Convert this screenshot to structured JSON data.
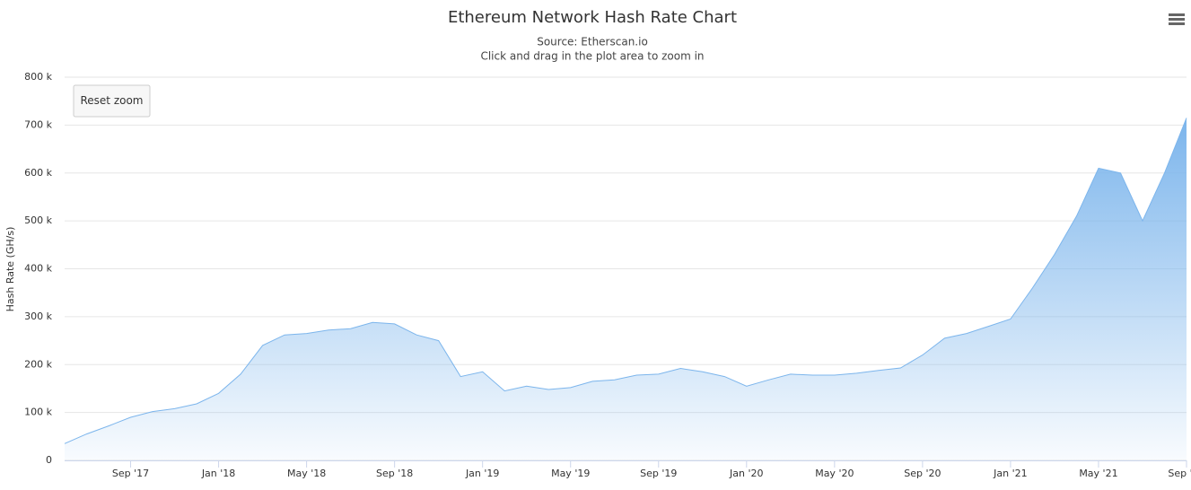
{
  "chart_data": {
    "type": "area",
    "title": "Ethereum Network Hash Rate Chart",
    "subtitle": [
      "Source: Etherscan.io",
      "Click and drag in the plot area to zoom in"
    ],
    "y_label": "Hash Rate (GH/s)",
    "reset_button": "Reset zoom",
    "color": "#7cb5ec",
    "grid": true,
    "x": [
      "2017-06",
      "2017-07",
      "2017-08",
      "2017-09",
      "2017-10",
      "2017-11",
      "2017-12",
      "2018-01",
      "2018-02",
      "2018-03",
      "2018-04",
      "2018-05",
      "2018-06",
      "2018-07",
      "2018-08",
      "2018-09",
      "2018-10",
      "2018-11",
      "2018-12",
      "2019-01",
      "2019-02",
      "2019-03",
      "2019-04",
      "2019-05",
      "2019-06",
      "2019-07",
      "2019-08",
      "2019-09",
      "2019-10",
      "2019-11",
      "2019-12",
      "2020-01",
      "2020-02",
      "2020-03",
      "2020-04",
      "2020-05",
      "2020-06",
      "2020-07",
      "2020-08",
      "2020-09",
      "2020-10",
      "2020-11",
      "2020-12",
      "2021-01",
      "2021-02",
      "2021-03",
      "2021-04",
      "2021-05",
      "2021-06",
      "2021-07",
      "2021-08",
      "2021-09"
    ],
    "values": [
      35000,
      55000,
      72000,
      90000,
      102000,
      108000,
      118000,
      140000,
      180000,
      240000,
      262000,
      265000,
      272000,
      275000,
      288000,
      285000,
      262000,
      250000,
      175000,
      185000,
      145000,
      155000,
      148000,
      152000,
      165000,
      168000,
      178000,
      180000,
      192000,
      185000,
      175000,
      155000,
      168000,
      180000,
      178000,
      178000,
      182000,
      188000,
      193000,
      220000,
      255000,
      265000,
      280000,
      295000,
      360000,
      430000,
      510000,
      610000,
      600000,
      500000,
      600000,
      715000
    ],
    "xlim": [
      "2017-06",
      "2021-09"
    ],
    "xticks": [
      {
        "value": "2017-09",
        "label": "Sep '17"
      },
      {
        "value": "2018-01",
        "label": "Jan '18"
      },
      {
        "value": "2018-05",
        "label": "May '18"
      },
      {
        "value": "2018-09",
        "label": "Sep '18"
      },
      {
        "value": "2019-01",
        "label": "Jan '19"
      },
      {
        "value": "2019-05",
        "label": "May '19"
      },
      {
        "value": "2019-09",
        "label": "Sep '19"
      },
      {
        "value": "2020-01",
        "label": "Jan '20"
      },
      {
        "value": "2020-05",
        "label": "May '20"
      },
      {
        "value": "2020-09",
        "label": "Sep '20"
      },
      {
        "value": "2021-01",
        "label": "Jan '21"
      },
      {
        "value": "2021-05",
        "label": "May '21"
      },
      {
        "value": "2021-09",
        "label": "Sep '21"
      }
    ],
    "ylim": [
      0,
      800000
    ],
    "yticks": [
      0,
      {
        "value": 100000,
        "label": "100 k"
      },
      {
        "value": 200000,
        "label": "200 k"
      },
      {
        "value": 300000,
        "label": "300 k"
      },
      {
        "value": 400000,
        "label": "400 k"
      },
      {
        "value": 500000,
        "label": "500 k"
      },
      {
        "value": 600000,
        "label": "600 k"
      },
      {
        "value": 700000,
        "label": "700 k"
      },
      {
        "value": 800000,
        "label": "800 k"
      }
    ]
  }
}
